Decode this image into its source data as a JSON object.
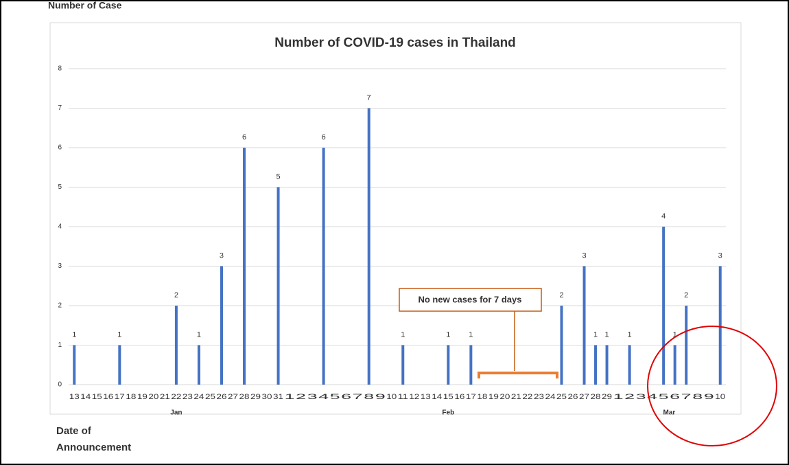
{
  "chart_data": {
    "type": "bar",
    "title": "Number of COVID-19 cases in Thailand",
    "y_label": "Number of Case",
    "x_label": "Date of Announcement",
    "annotation": "No new cases for 7 days",
    "months": [
      "Jan",
      "Feb",
      "Mar"
    ],
    "categories": [
      "13",
      "14",
      "15",
      "16",
      "17",
      "18",
      "19",
      "20",
      "21",
      "22",
      "23",
      "24",
      "25",
      "26",
      "27",
      "28",
      "29",
      "30",
      "31",
      "1",
      "2",
      "3",
      "4",
      "5",
      "6",
      "7",
      "8",
      "9",
      "10",
      "11",
      "12",
      "13",
      "14",
      "15",
      "16",
      "17",
      "18",
      "19",
      "20",
      "21",
      "22",
      "23",
      "24",
      "25",
      "26",
      "27",
      "28",
      "29",
      "1",
      "2",
      "3",
      "4",
      "5",
      "6",
      "7",
      "8",
      "9",
      "10"
    ],
    "values": [
      1,
      0,
      0,
      0,
      1,
      0,
      0,
      0,
      0,
      2,
      0,
      1,
      0,
      3,
      0,
      6,
      0,
      0,
      5,
      0,
      0,
      0,
      6,
      0,
      0,
      0,
      7,
      0,
      0,
      1,
      0,
      0,
      0,
      1,
      0,
      1,
      0,
      0,
      0,
      0,
      0,
      0,
      0,
      2,
      0,
      3,
      1,
      1,
      0,
      1,
      0,
      0,
      4,
      1,
      2,
      0,
      0,
      3
    ],
    "color": "#4472c4",
    "ylim": [
      0,
      8
    ],
    "yticks": [
      0,
      1,
      2,
      3,
      4,
      5,
      6,
      7,
      8
    ],
    "grid": true
  }
}
